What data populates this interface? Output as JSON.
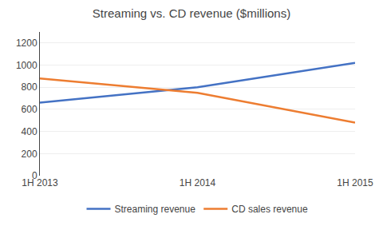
{
  "chart_data": {
    "type": "line",
    "title": "Streaming vs. CD revenue ($millions)",
    "categories": [
      "1H 2013",
      "1H 2014",
      "1H 2015"
    ],
    "series": [
      {
        "name": "Streaming revenue",
        "color": "#4472C4",
        "values": [
          660,
          800,
          1020
        ]
      },
      {
        "name": "CD sales revenue",
        "color": "#ED7D31",
        "values": [
          880,
          750,
          480
        ]
      }
    ],
    "ylim": [
      0,
      1300
    ],
    "yticks": [
      0,
      200,
      400,
      600,
      800,
      1000,
      1200
    ],
    "grid": true,
    "legend": "bottom"
  }
}
